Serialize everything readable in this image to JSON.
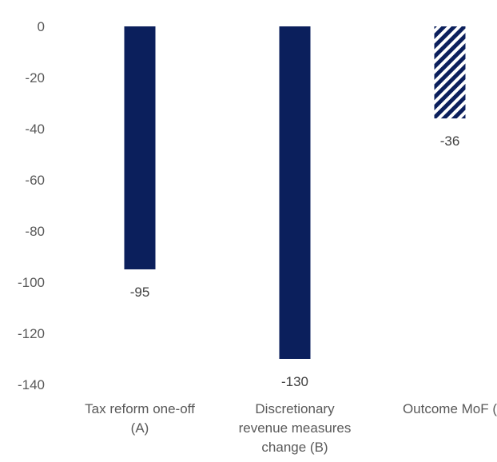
{
  "chart_data": {
    "type": "bar",
    "categories": [
      [
        "Tax reform one-off",
        "(A)"
      ],
      [
        "Discretionary",
        "revenue measures",
        "change (B)"
      ],
      [
        "Outcome MoF ("
      ]
    ],
    "values": [
      -95,
      -130,
      -36
    ],
    "data_labels": [
      "-95",
      "-130",
      "-36"
    ],
    "bar_styles": [
      "solid",
      "solid",
      "hatched"
    ],
    "ylim": [
      -140,
      0
    ],
    "y_ticks": [
      "0",
      "-20",
      "-40",
      "-60",
      "-80",
      "-100",
      "-120",
      "-140"
    ],
    "grid": false,
    "legend": "none",
    "title": "",
    "xlabel": "",
    "ylabel": "",
    "colors": {
      "bar": "#0b1f5c"
    }
  }
}
